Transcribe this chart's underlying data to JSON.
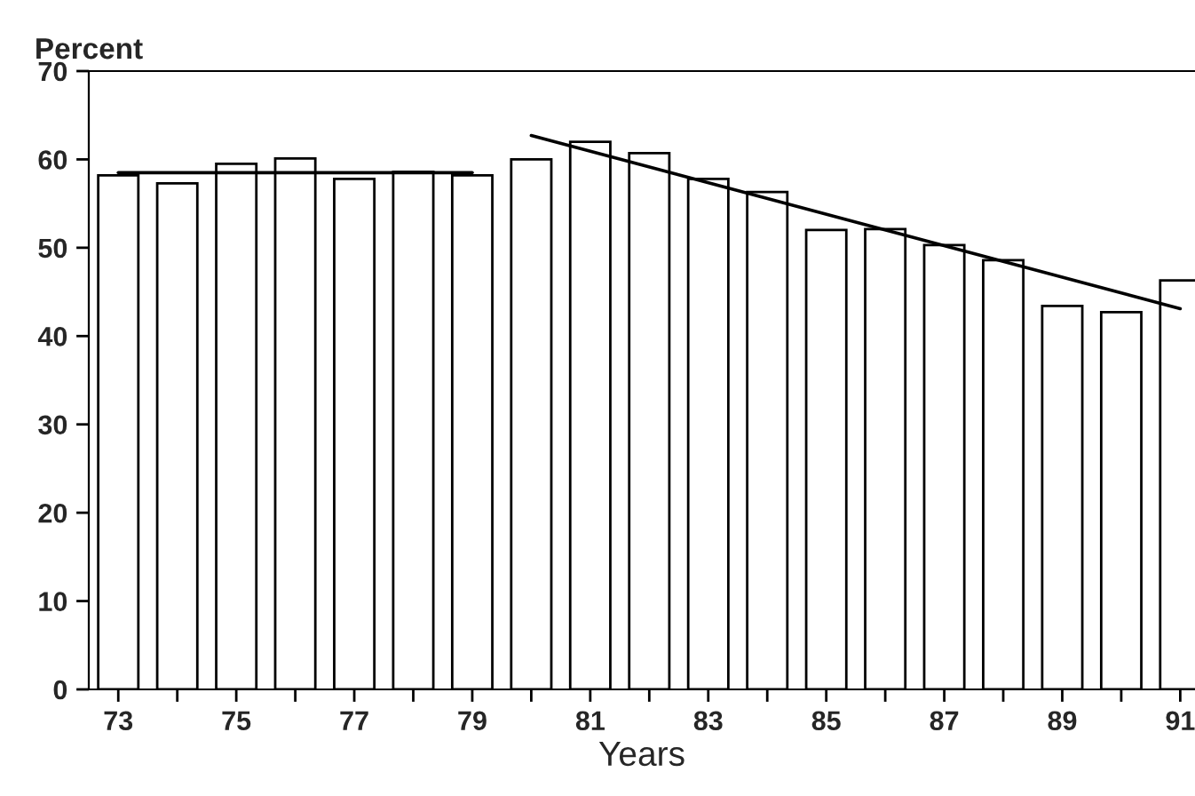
{
  "chart_data": {
    "type": "bar",
    "ylabel": "Percent",
    "xlabel": "Years",
    "x": [
      73,
      74,
      75,
      76,
      77,
      78,
      79,
      80,
      81,
      82,
      83,
      84,
      85,
      86,
      87,
      88,
      89,
      90,
      91
    ],
    "series": [
      {
        "color": "#ffffff",
        "values": [
          58.2,
          57.3,
          59.5,
          60.1,
          57.8,
          58.6,
          58.2,
          60.0,
          62.0,
          60.7,
          57.8,
          56.3,
          52.0,
          52.1,
          50.3,
          48.6,
          43.4,
          42.7,
          46.3
        ]
      },
      {
        "type": "line",
        "color": "#000000",
        "x": [
          73,
          79
        ],
        "values": [
          58.5,
          58.5
        ]
      },
      {
        "type": "line",
        "color": "#000000",
        "x": [
          80,
          91
        ],
        "values": [
          62.7,
          43.1
        ]
      }
    ],
    "xlim": [
      72.5,
      91.25
    ],
    "xticks": [
      73,
      {
        "value": 74,
        "label": null
      },
      75,
      {
        "value": 76,
        "label": null
      },
      77,
      {
        "value": 78,
        "label": null
      },
      79,
      {
        "value": 80,
        "label": null
      },
      81,
      {
        "value": 82,
        "label": null
      },
      83,
      {
        "value": 84,
        "label": null
      },
      85,
      {
        "value": 86,
        "label": null
      },
      87,
      {
        "value": 88,
        "label": null
      },
      89,
      {
        "value": 90,
        "label": null
      },
      91
    ],
    "ylim": [
      0,
      70
    ],
    "yticks": [
      0,
      10,
      20,
      30,
      40,
      50,
      60,
      70
    ],
    "grid": false,
    "legend": false
  }
}
